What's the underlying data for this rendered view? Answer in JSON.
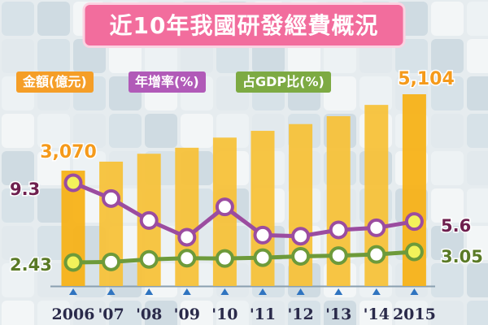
{
  "title": "近10年我國研發經費概況",
  "colors": {
    "bar": "#f7c23a",
    "bar_highlight": "#f7b218",
    "growth": "#9b4ca0",
    "gdp": "#6d9a3a",
    "marker_fill": "#f3f25a",
    "banner": "#f26d9d",
    "orange_text": "#f59a1b",
    "purple_text": "#6e1f4e",
    "green_text": "#5a7a26",
    "axis_text": "#2a2a4a"
  },
  "legend": [
    {
      "label": "金額(億元)",
      "color": "#f59e27"
    },
    {
      "label": "年增率(%)",
      "color": "#b15ab8"
    },
    {
      "label": "占GDP比(%)",
      "color": "#7daa43"
    }
  ],
  "chart_data": {
    "type": "bar+line",
    "categories": [
      "2006",
      "'07",
      "'08",
      "'09",
      "'10",
      "'11",
      "'12",
      "'13",
      "'14",
      "2015"
    ],
    "series": [
      {
        "name": "金額(億元)",
        "kind": "bar",
        "values": [
          3070,
          3310,
          3520,
          3680,
          3950,
          4130,
          4310,
          4520,
          4820,
          5104
        ]
      },
      {
        "name": "年增率(%)",
        "kind": "line",
        "values": [
          9.3,
          7.8,
          5.7,
          4.1,
          7.0,
          4.3,
          4.2,
          4.8,
          5.0,
          5.6
        ]
      },
      {
        "name": "占GDP比(%)",
        "kind": "line",
        "values": [
          2.43,
          2.46,
          2.61,
          2.68,
          2.66,
          2.71,
          2.79,
          2.83,
          2.9,
          3.05
        ]
      }
    ],
    "labels": {
      "bar_first": "3,070",
      "bar_last": "5,104",
      "growth_first": "9.3",
      "growth_last": "5.6",
      "gdp_first": "2.43",
      "gdp_last": "3.05"
    },
    "xlabel": "",
    "ylabel": "",
    "grid": false
  }
}
